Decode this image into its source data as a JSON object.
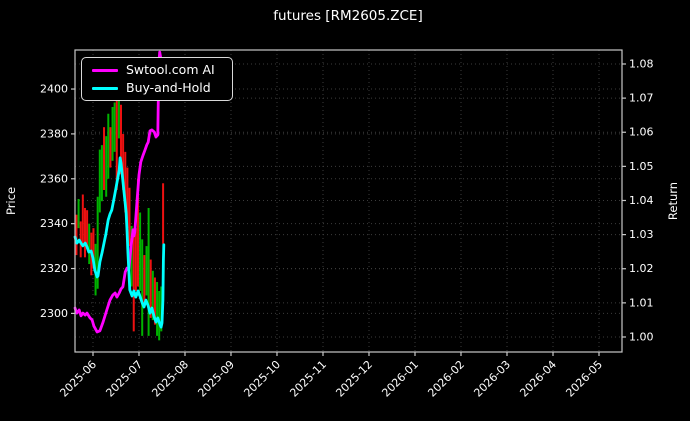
{
  "window": {
    "title": "futures [RM2605.ZCE]"
  },
  "chart_data": {
    "type": "mixed",
    "subtype": "candlestick-range-bars with two line series, dual y-axis",
    "title": "futures [RM2605.ZCE]",
    "background": "#000000",
    "grid": {
      "visible": true,
      "style": "dotted",
      "color": "#3c3c3c"
    },
    "colors": {
      "text": "#ffffff",
      "spine": "#c8c8c8",
      "bar_up": "#00b300",
      "bar_down": "#ee1111",
      "ai_line": "#ff00ff",
      "bh_line": "#00ffff"
    },
    "x_axis": {
      "label": "",
      "unit": "months since 2025-06-01",
      "range": [
        -0.391,
        11.5
      ],
      "ticks": [
        0,
        1,
        2,
        3,
        4,
        5,
        6,
        7,
        8,
        9,
        10,
        11
      ],
      "tick_labels": [
        "2025-06",
        "2025-07",
        "2025-08",
        "2025-09",
        "2025-10",
        "2025-11",
        "2025-12",
        "2026-01",
        "2026-02",
        "2026-03",
        "2026-04",
        "2026-05"
      ],
      "tick_rotation_deg": 45
    },
    "left_axis": {
      "label": "Price",
      "range": [
        2282.8,
        2417.4
      ],
      "ticks": [
        2300,
        2320,
        2340,
        2360,
        2380,
        2400
      ],
      "tick_labels": [
        "2300",
        "2320",
        "2340",
        "2360",
        "2380",
        "2400"
      ]
    },
    "right_axis": {
      "label": "Return",
      "range": [
        0.9956,
        1.0841
      ],
      "ticks": [
        1.0,
        1.01,
        1.02,
        1.03,
        1.04,
        1.05,
        1.06,
        1.07,
        1.08
      ],
      "tick_labels": [
        "1.00",
        "1.01",
        "1.02",
        "1.03",
        "1.04",
        "1.05",
        "1.06",
        "1.07",
        "1.08"
      ]
    },
    "legend": {
      "position": "upper left",
      "entries": [
        {
          "label": "Swtool.com AI",
          "color": "#ff00ff"
        },
        {
          "label": "Buy-and-Hold",
          "color": "#00ffff"
        }
      ]
    },
    "series": [
      {
        "name": "Swtool.com AI",
        "type": "line",
        "axis": "right",
        "color": "#ff00ff",
        "points": [
          [
            -0.391,
            1.0085
          ],
          [
            -0.35,
            1.007
          ],
          [
            -0.3,
            1.0079
          ],
          [
            -0.26,
            1.0062
          ],
          [
            -0.22,
            1.007
          ],
          [
            -0.17,
            1.0064
          ],
          [
            -0.13,
            1.007
          ],
          [
            -0.065,
            1.0056
          ],
          [
            -0.02,
            1.005
          ],
          [
            0.02,
            1.0032
          ],
          [
            0.09,
            1.0015
          ],
          [
            0.15,
            1.0018
          ],
          [
            0.22,
            1.0044
          ],
          [
            0.3,
            1.0079
          ],
          [
            0.37,
            1.0108
          ],
          [
            0.43,
            1.0123
          ],
          [
            0.48,
            1.0129
          ],
          [
            0.52,
            1.0117
          ],
          [
            0.57,
            1.0129
          ],
          [
            0.61,
            1.0141
          ],
          [
            0.65,
            1.0147
          ],
          [
            0.7,
            1.019
          ],
          [
            0.74,
            1.0202
          ],
          [
            0.78,
            1.0199
          ],
          [
            0.83,
            1.027
          ],
          [
            0.85,
            1.029
          ],
          [
            0.87,
            1.0314
          ],
          [
            0.89,
            1.0296
          ],
          [
            0.91,
            1.0308
          ],
          [
            0.96,
            1.0401
          ],
          [
            1.0,
            1.0475
          ],
          [
            1.04,
            1.0513
          ],
          [
            1.09,
            1.0533
          ],
          [
            1.13,
            1.0548
          ],
          [
            1.17,
            1.0563
          ],
          [
            1.2,
            1.0571
          ],
          [
            1.24,
            1.0604
          ],
          [
            1.28,
            1.0607
          ],
          [
            1.33,
            1.0601
          ],
          [
            1.37,
            1.0586
          ],
          [
            1.41,
            1.0592
          ],
          [
            1.43,
            1.08
          ],
          [
            1.45,
            1.0835
          ],
          [
            1.47,
            1.082
          ]
        ]
      },
      {
        "name": "Buy-and-Hold",
        "type": "line",
        "axis": "right",
        "color": "#00ffff",
        "points": [
          [
            -0.391,
            1.0293
          ],
          [
            -0.35,
            1.0275
          ],
          [
            -0.3,
            1.0284
          ],
          [
            -0.26,
            1.0275
          ],
          [
            -0.22,
            1.0267
          ],
          [
            -0.17,
            1.0275
          ],
          [
            -0.13,
            1.0264
          ],
          [
            -0.09,
            1.0249
          ],
          [
            -0.04,
            1.0252
          ],
          [
            0.0,
            1.0231
          ],
          [
            0.04,
            1.0196
          ],
          [
            0.09,
            1.0176
          ],
          [
            0.11,
            1.0179
          ],
          [
            0.15,
            1.022
          ],
          [
            0.2,
            1.0249
          ],
          [
            0.24,
            1.0275
          ],
          [
            0.28,
            1.0302
          ],
          [
            0.33,
            1.0343
          ],
          [
            0.37,
            1.036
          ],
          [
            0.41,
            1.0372
          ],
          [
            0.46,
            1.0407
          ],
          [
            0.5,
            1.0437
          ],
          [
            0.54,
            1.0466
          ],
          [
            0.57,
            1.0489
          ],
          [
            0.59,
            1.0525
          ],
          [
            0.61,
            1.051
          ],
          [
            0.63,
            1.0483
          ],
          [
            0.67,
            1.0431
          ],
          [
            0.72,
            1.0366
          ],
          [
            0.74,
            1.0314
          ],
          [
            0.76,
            1.0249
          ],
          [
            0.78,
            1.019
          ],
          [
            0.8,
            1.0138
          ],
          [
            0.85,
            1.012
          ],
          [
            0.89,
            1.0135
          ],
          [
            0.93,
            1.0117
          ],
          [
            0.98,
            1.0135
          ],
          [
            1.02,
            1.012
          ],
          [
            1.07,
            1.01
          ],
          [
            1.11,
            1.0088
          ],
          [
            1.15,
            1.0108
          ],
          [
            1.2,
            1.0091
          ],
          [
            1.24,
            1.007
          ],
          [
            1.28,
            1.0085
          ],
          [
            1.33,
            1.0059
          ],
          [
            1.37,
            1.0044
          ],
          [
            1.41,
            1.0056
          ],
          [
            1.46,
            1.0035
          ],
          [
            1.48,
            1.0029
          ],
          [
            1.5,
            1.0041
          ],
          [
            1.52,
            1.0108
          ],
          [
            1.53,
            1.0226
          ],
          [
            1.54,
            1.027
          ]
        ]
      },
      {
        "name": "price-range-bars",
        "type": "hl-bars",
        "axis": "left",
        "bars_format": [
          "x_months",
          "low",
          "high",
          "direction r=down g=up"
        ],
        "bars": [
          [
            -0.359,
            2326,
            2344,
            "r"
          ],
          [
            -0.313,
            2338,
            2351,
            "g"
          ],
          [
            -0.267,
            2325,
            2341,
            "r"
          ],
          [
            -0.221,
            2330,
            2353,
            "r"
          ],
          [
            -0.174,
            2325,
            2347,
            "r"
          ],
          [
            -0.128,
            2329,
            2346,
            "r"
          ],
          [
            -0.082,
            2322,
            2340,
            "g"
          ],
          [
            -0.036,
            2317,
            2336,
            "r"
          ],
          [
            0.01,
            2320,
            2338,
            "r"
          ],
          [
            0.056,
            2308,
            2331,
            "g"
          ],
          [
            0.102,
            2311,
            2352,
            "g"
          ],
          [
            0.148,
            2345,
            2373,
            "g"
          ],
          [
            0.194,
            2350,
            2375,
            "g"
          ],
          [
            0.24,
            2355,
            2383,
            "r"
          ],
          [
            0.287,
            2352,
            2379,
            "g"
          ],
          [
            0.333,
            2360,
            2389,
            "g"
          ],
          [
            0.379,
            2365,
            2383,
            "r"
          ],
          [
            0.425,
            2368,
            2392,
            "g"
          ],
          [
            0.471,
            2372,
            2394,
            "g"
          ],
          [
            0.517,
            2355,
            2404,
            "r"
          ],
          [
            0.563,
            2378,
            2397,
            "g"
          ],
          [
            0.609,
            2362,
            2393,
            "r"
          ],
          [
            0.655,
            2355,
            2380,
            "r"
          ],
          [
            0.702,
            2345,
            2372,
            "r"
          ],
          [
            0.748,
            2338,
            2365,
            "r"
          ],
          [
            0.794,
            2330,
            2356,
            "r"
          ],
          [
            0.84,
            2312,
            2339,
            "g"
          ],
          [
            0.886,
            2292,
            2335,
            "r"
          ],
          [
            0.932,
            2310,
            2338,
            "r"
          ],
          [
            0.978,
            2312,
            2360,
            "r"
          ],
          [
            1.024,
            2310,
            2345,
            "g"
          ],
          [
            1.07,
            2290,
            2333,
            "g"
          ],
          [
            1.116,
            2303,
            2326,
            "r"
          ],
          [
            1.163,
            2308,
            2330,
            "g"
          ],
          [
            1.209,
            2290,
            2347,
            "g"
          ],
          [
            1.255,
            2298,
            2324,
            "r"
          ],
          [
            1.301,
            2297,
            2319,
            "g"
          ],
          [
            1.347,
            2295,
            2316,
            "r"
          ],
          [
            1.393,
            2290,
            2314,
            "g"
          ],
          [
            1.439,
            2288,
            2310,
            "g"
          ],
          [
            1.485,
            2292,
            2312,
            "g"
          ],
          [
            1.524,
            2331,
            2358,
            "r"
          ]
        ]
      }
    ]
  }
}
